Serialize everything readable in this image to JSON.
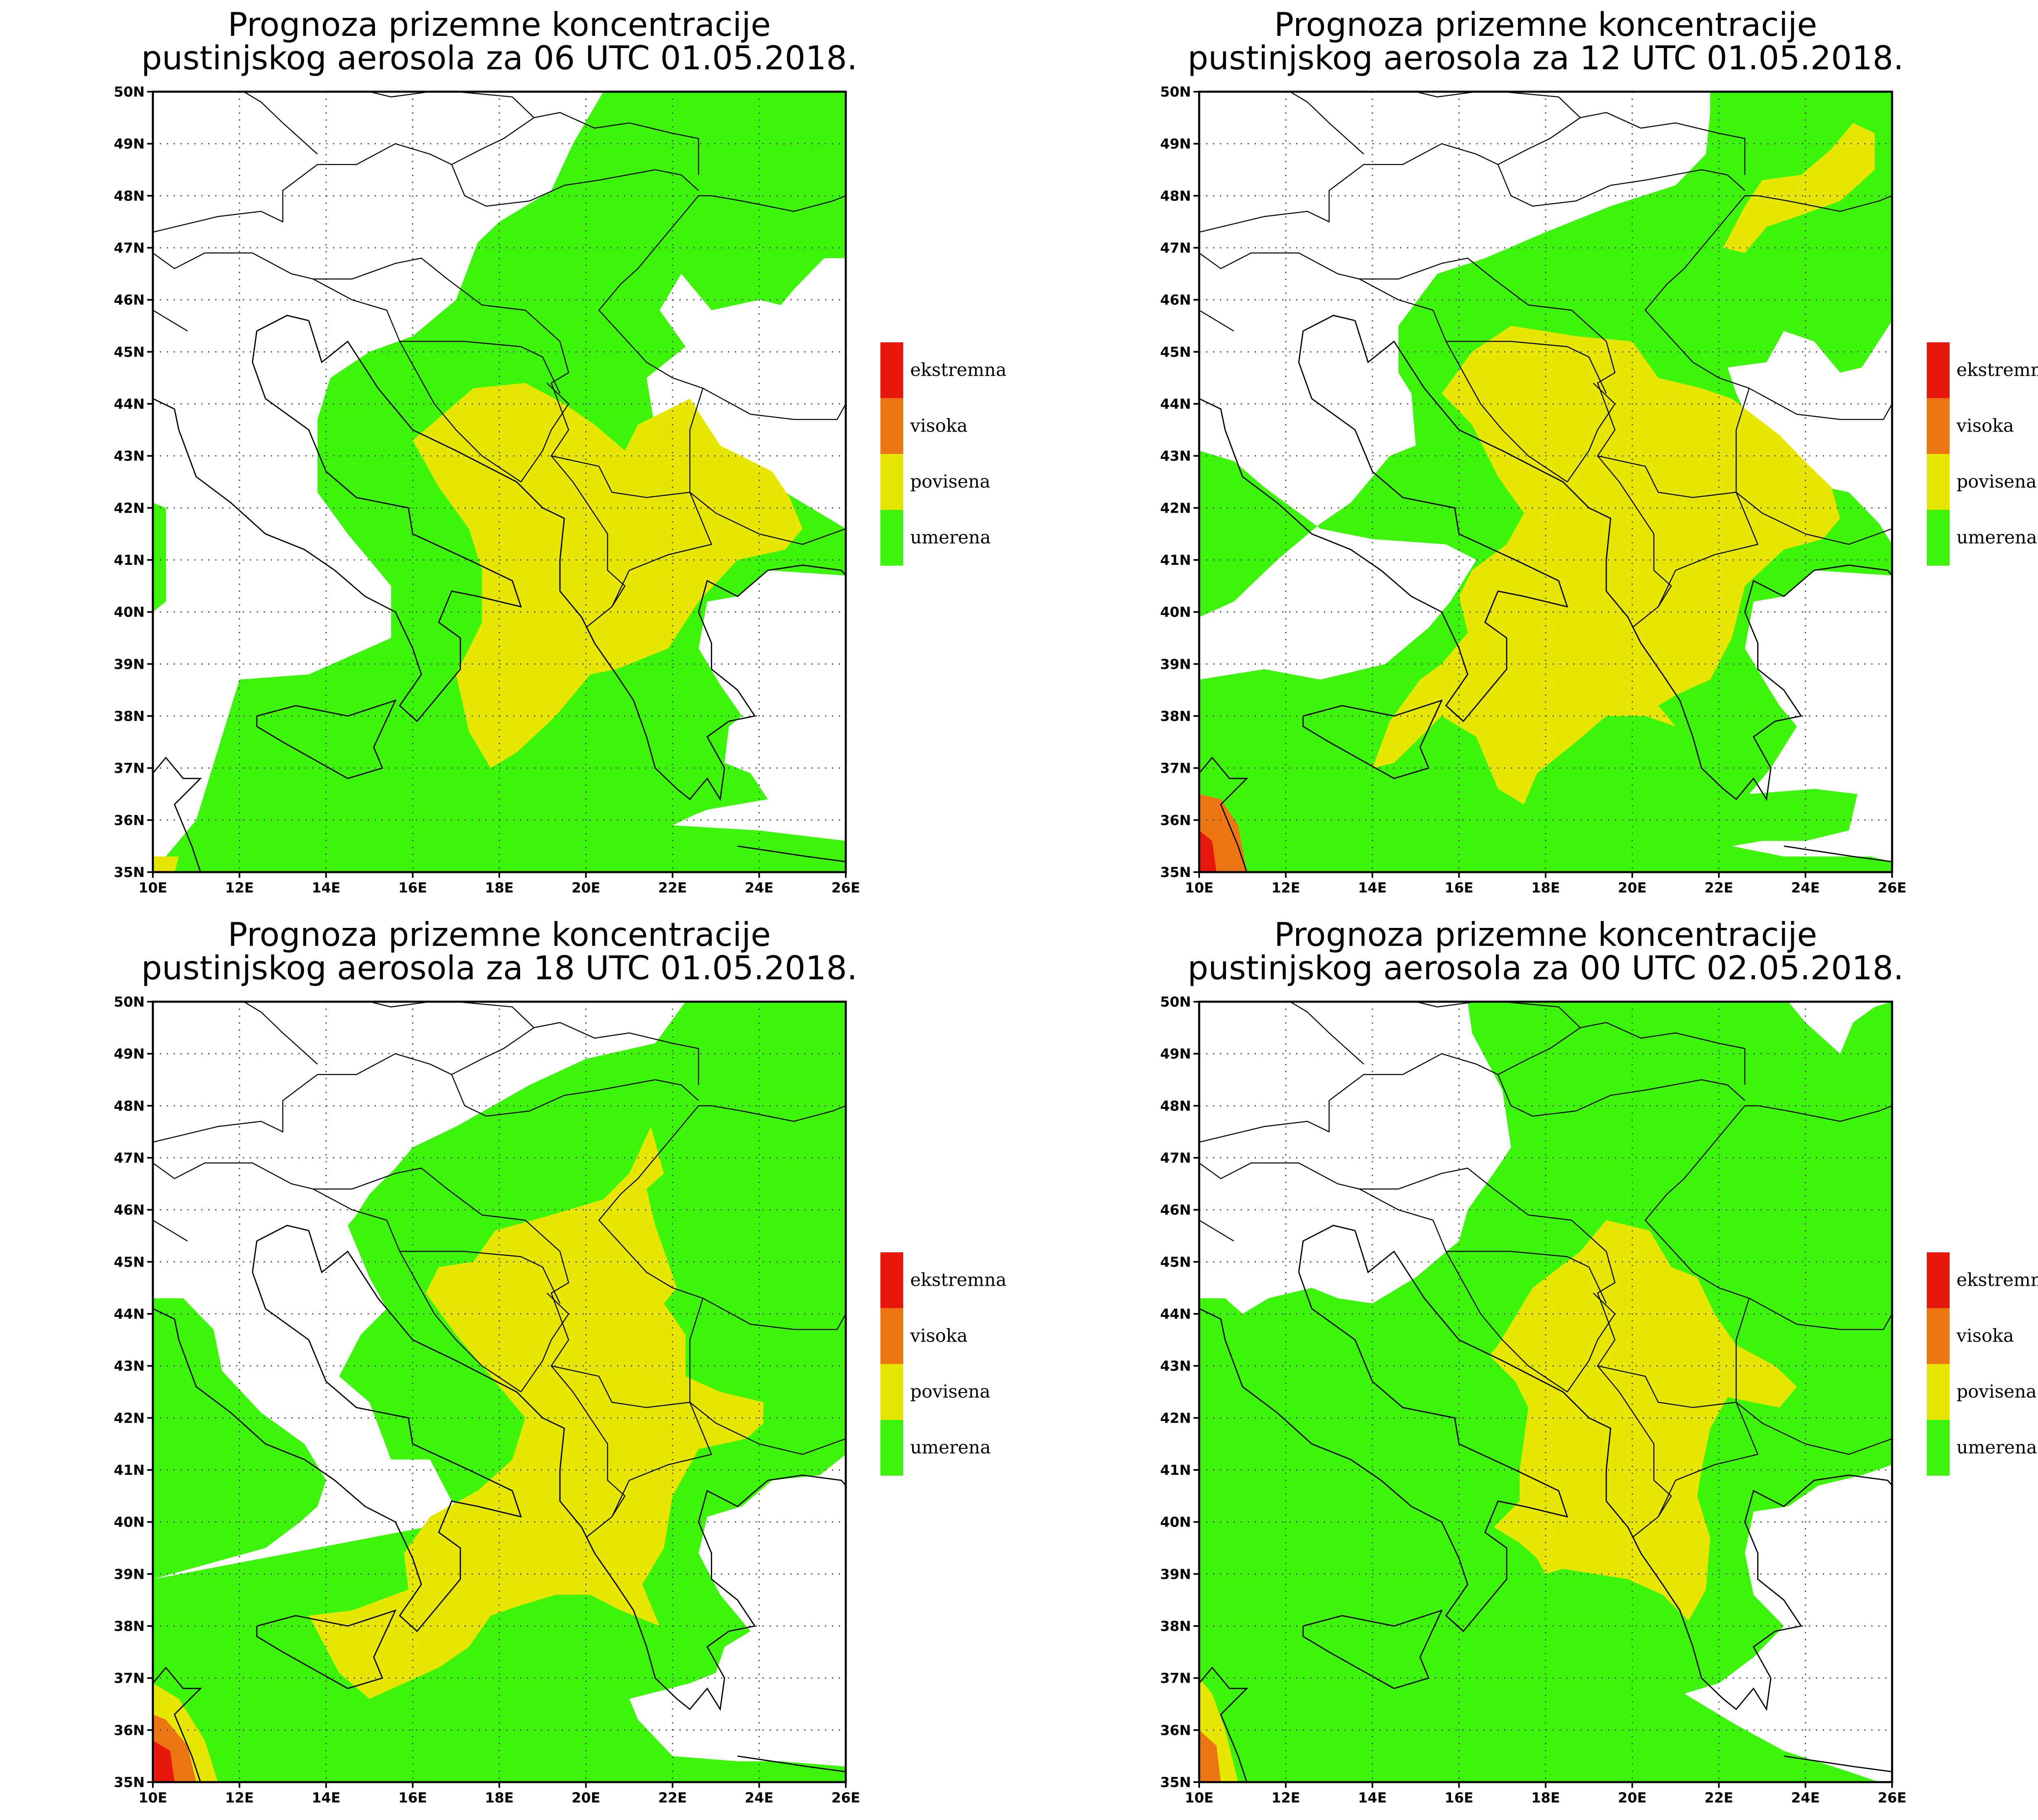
{
  "panels": [
    {
      "id": "06utc",
      "title_line1": "Prognoza prizemne koncentracije",
      "title_line2": "pustinjskog aerosola za 06 UTC 01.05.2018."
    },
    {
      "id": "12utc",
      "title_line1": "Prognoza prizemne koncentracije",
      "title_line2": "pustinjskog aerosola za 12 UTC 01.05.2018."
    },
    {
      "id": "18utc",
      "title_line1": "Prognoza prizemne koncentracije",
      "title_line2": "pustinjskog aerosola za 18 UTC 01.05.2018."
    },
    {
      "id": "00utc",
      "title_line1": "Prognoza prizemne koncentracije",
      "title_line2": "pustinjskog aerosola za 00 UTC 02.05.2018."
    }
  ],
  "axes": {
    "lat_labels": [
      "35N",
      "36N",
      "37N",
      "38N",
      "39N",
      "40N",
      "41N",
      "42N",
      "43N",
      "44N",
      "45N",
      "46N",
      "47N",
      "48N",
      "49N",
      "50N"
    ],
    "lon_labels": [
      "10E",
      "12E",
      "14E",
      "16E",
      "18E",
      "20E",
      "22E",
      "24E",
      "26E"
    ],
    "lat_range": [
      35,
      50
    ],
    "lon_range": [
      10,
      26
    ]
  },
  "legend": [
    {
      "label": "ekstremna",
      "color": "#e8180c"
    },
    {
      "label": "visoka",
      "color": "#ec7612"
    },
    {
      "label": "povisena",
      "color": "#e6e600"
    },
    {
      "label": "umerena",
      "color": "#3cf50a"
    }
  ],
  "colors": {
    "umerena": "#3cf50a",
    "povisena": "#e6e600",
    "visoka": "#ec7612",
    "ekstremna": "#e8180c"
  }
}
